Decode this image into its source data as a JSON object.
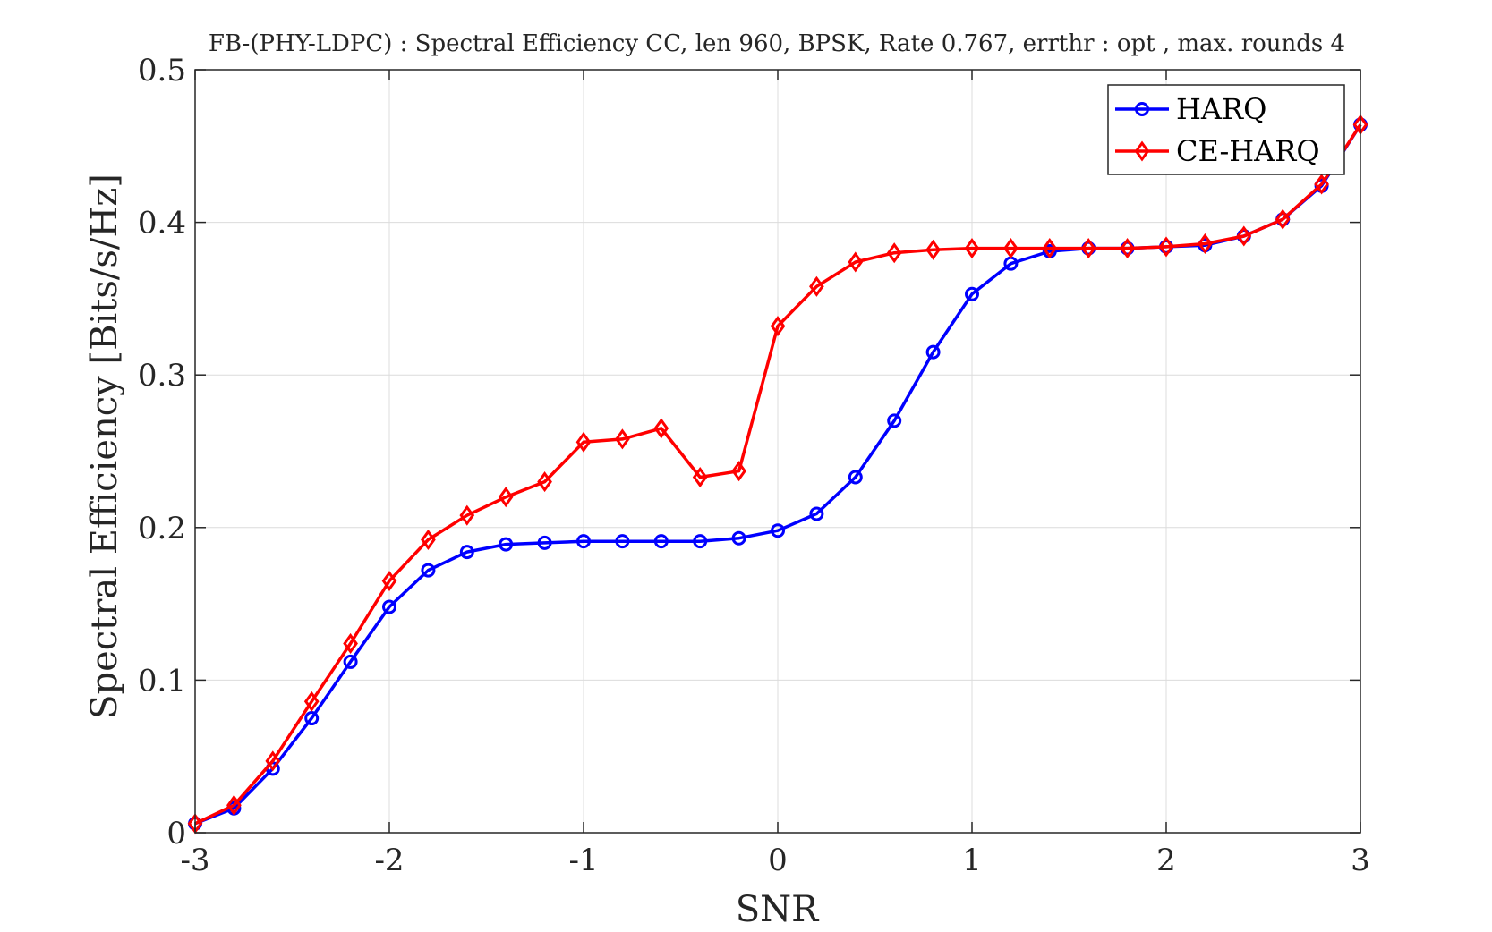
{
  "chart_data": {
    "type": "line",
    "title": "FB-(PHY-LDPC) : Spectral Efficiency CC, len 960, BPSK, Rate 0.767, errthr : opt , max. rounds 4",
    "xlabel": "SNR",
    "ylabel": "Spectral Efficiency [Bits/s/Hz]",
    "xlim": [
      -3,
      3
    ],
    "ylim": [
      0,
      0.5
    ],
    "xticks": [
      -3,
      -2,
      -1,
      0,
      1,
      2,
      3
    ],
    "xtick_labels": [
      "-3",
      "-2",
      "-1",
      "0",
      "1",
      "2",
      "3"
    ],
    "yticks": [
      0,
      0.1,
      0.2,
      0.3,
      0.4,
      0.5
    ],
    "ytick_labels": [
      "0",
      "0.1",
      "0.2",
      "0.3",
      "0.4",
      "0.5"
    ],
    "grid": true,
    "legend_position": "top-right",
    "x": [
      -3.0,
      -2.8,
      -2.6,
      -2.4,
      -2.2,
      -2.0,
      -1.8,
      -1.6,
      -1.4,
      -1.2,
      -1.0,
      -0.8,
      -0.6,
      -0.4,
      -0.2,
      0.0,
      0.2,
      0.4,
      0.6,
      0.8,
      1.0,
      1.2,
      1.4,
      1.6,
      1.8,
      2.0,
      2.2,
      2.4,
      2.6,
      2.8,
      3.0
    ],
    "series": [
      {
        "name": "HARQ",
        "color": "#0000ff",
        "marker": "circle",
        "values": [
          0.006,
          0.016,
          0.042,
          0.075,
          0.112,
          0.148,
          0.172,
          0.184,
          0.189,
          0.19,
          0.191,
          0.191,
          0.191,
          0.191,
          0.193,
          0.198,
          0.209,
          0.233,
          0.27,
          0.315,
          0.353,
          0.373,
          0.381,
          0.383,
          0.383,
          0.384,
          0.385,
          0.391,
          0.402,
          0.424,
          0.464
        ]
      },
      {
        "name": "CE-HARQ",
        "color": "#ff0000",
        "marker": "diamond",
        "values": [
          0.006,
          0.018,
          0.047,
          0.086,
          0.124,
          0.165,
          0.192,
          0.208,
          0.22,
          0.23,
          0.256,
          0.258,
          0.265,
          0.233,
          0.237,
          0.332,
          0.358,
          0.374,
          0.38,
          0.382,
          0.383,
          0.383,
          0.383,
          0.383,
          0.383,
          0.384,
          0.386,
          0.391,
          0.402,
          0.425,
          0.464
        ]
      }
    ]
  }
}
